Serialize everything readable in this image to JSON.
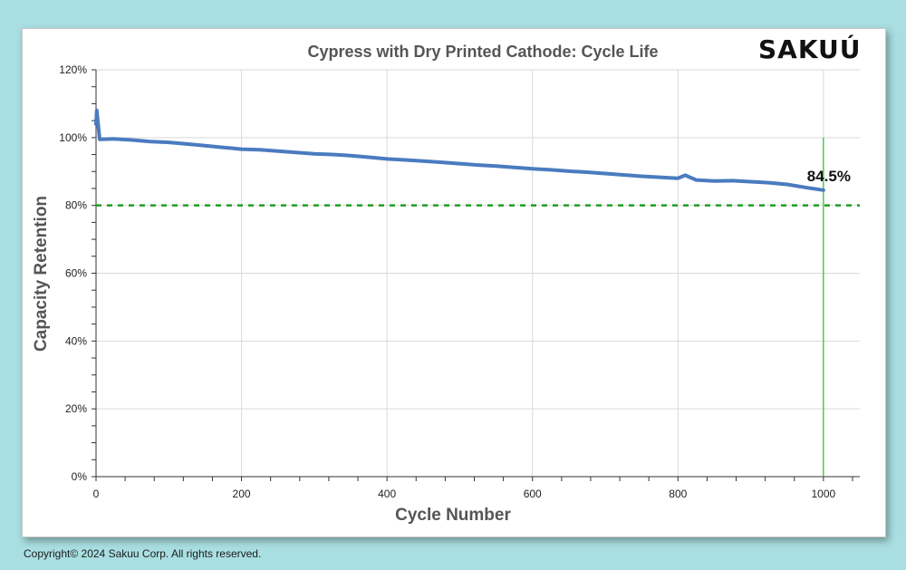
{
  "brand": {
    "logo_text": "SAKUÚ"
  },
  "footer": {
    "copyright": "Copyright© 2024 Sakuu Corp. All rights reserved."
  },
  "colors": {
    "line": "#4a7bbf",
    "threshold": "#1e9e1e",
    "marker": "#2eb82e",
    "grid": "#d9d9d9"
  },
  "chart_data": {
    "type": "line",
    "title": "Cypress with Dry Printed Cathode: Cycle Life",
    "xlabel": "Cycle Number",
    "ylabel": "Capacity Retention",
    "xlim": [
      0,
      1050
    ],
    "ylim": [
      0,
      120
    ],
    "xticks": [
      0,
      200,
      400,
      600,
      800,
      1000
    ],
    "yticks": [
      0,
      20,
      40,
      60,
      80,
      100,
      120
    ],
    "ytick_labels": [
      "0%",
      "20%",
      "40%",
      "60%",
      "80%",
      "100%",
      "120%"
    ],
    "grid": true,
    "series": [
      {
        "x": [
          0,
          1,
          5,
          25,
          50,
          75,
          100,
          125,
          150,
          175,
          200,
          225,
          250,
          275,
          300,
          325,
          350,
          375,
          400,
          425,
          450,
          475,
          500,
          525,
          550,
          575,
          600,
          625,
          650,
          675,
          700,
          725,
          750,
          775,
          800,
          810,
          825,
          850,
          875,
          900,
          925,
          950,
          975,
          1000
        ],
        "y": [
          104,
          108,
          99.5,
          99.6,
          99.3,
          98.8,
          98.6,
          98.1,
          97.6,
          97.1,
          96.6,
          96.4,
          96.0,
          95.6,
          95.2,
          95.0,
          94.7,
          94.2,
          93.7,
          93.4,
          93.1,
          92.7,
          92.3,
          91.9,
          91.6,
          91.2,
          90.8,
          90.5,
          90.1,
          89.8,
          89.4,
          89.0,
          88.6,
          88.3,
          88.0,
          88.9,
          87.5,
          87.2,
          87.3,
          87.0,
          86.7,
          86.2,
          85.3,
          84.5
        ]
      }
    ],
    "threshold": {
      "y": 80
    },
    "marker_line": {
      "x": 1000
    },
    "annotations": [
      {
        "text": "84.5%",
        "x": 1000,
        "y": 84.5
      }
    ]
  }
}
